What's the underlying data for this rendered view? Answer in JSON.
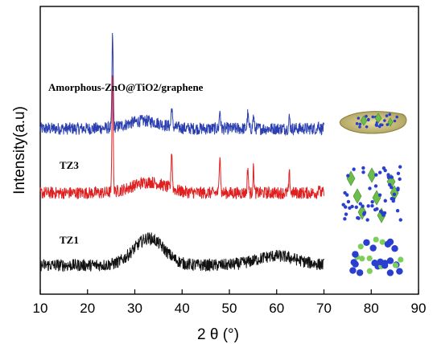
{
  "chart_data": {
    "type": "line",
    "xlabel": "2 θ (°)",
    "ylabel": "Intensity(a.u)",
    "xlim": [
      10,
      90
    ],
    "x_ticks": [
      "10",
      "20",
      "30",
      "40",
      "50",
      "60",
      "70",
      "80",
      "90"
    ],
    "data_x_range": [
      10,
      70
    ],
    "grid": false,
    "legend": "none",
    "series": [
      {
        "label": "Amorphous-ZnO@TiO2/graphene",
        "color": "#2b3fb0",
        "baseline": 0.0,
        "noise": 1.0,
        "hump": {
          "center": 32,
          "width": 5,
          "height": 1.0
        },
        "peaks": [
          {
            "x": 25.3,
            "h": 12.0
          },
          {
            "x": 37.8,
            "h": 2.6
          },
          {
            "x": 48.0,
            "h": 2.4
          },
          {
            "x": 53.9,
            "h": 1.9
          },
          {
            "x": 55.1,
            "h": 1.6
          },
          {
            "x": 62.7,
            "h": 1.4
          },
          {
            "x": 68.9,
            "h": 0.7
          }
        ]
      },
      {
        "label": "TZ3",
        "color": "#e02020",
        "baseline": 0.0,
        "noise": 1.0,
        "hump": {
          "center": 33,
          "width": 5,
          "height": 1.4
        },
        "peaks": [
          {
            "x": 25.3,
            "h": 16.0
          },
          {
            "x": 37.8,
            "h": 5.0
          },
          {
            "x": 48.0,
            "h": 5.4
          },
          {
            "x": 53.9,
            "h": 3.2
          },
          {
            "x": 55.1,
            "h": 3.2
          },
          {
            "x": 62.7,
            "h": 2.4
          },
          {
            "x": 68.9,
            "h": 1.0
          }
        ]
      },
      {
        "label": "TZ1",
        "color": "#111111",
        "baseline": 0.0,
        "noise": 1.0,
        "hump": {
          "center": 33,
          "width": 4.5,
          "height": 3.5
        },
        "hump2": {
          "center": 60,
          "width": 6,
          "height": 1.2
        },
        "peaks": []
      }
    ]
  }
}
